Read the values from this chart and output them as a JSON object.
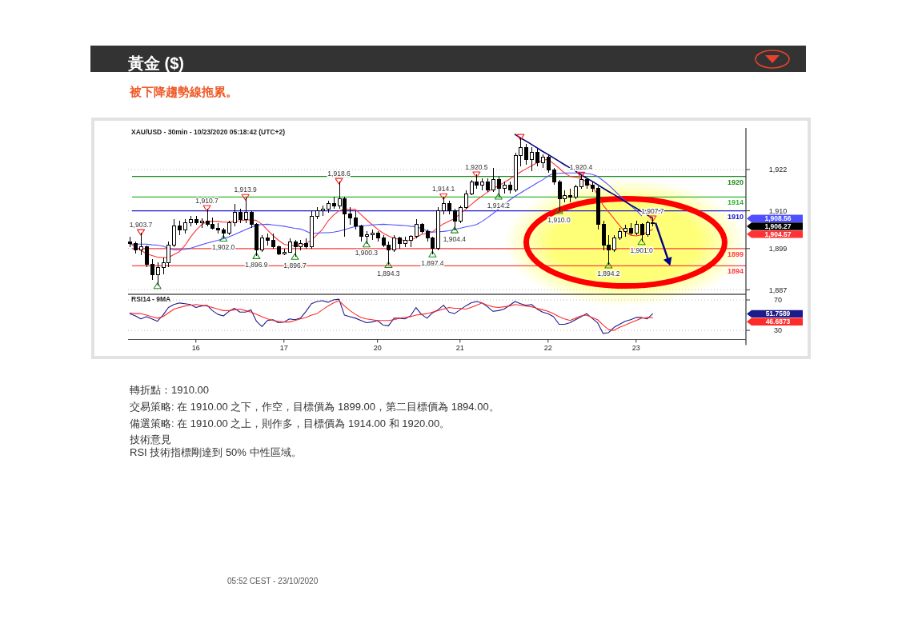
{
  "chart_data": [
    {
      "type": "candlestick",
      "title": "黃金 ($)",
      "subtitle": "被下降趨勢線拖累。",
      "categories": [
        null,
        null,
        null,
        null,
        null,
        null,
        null,
        null,
        null,
        null,
        null,
        null,
        null,
        null,
        null,
        null,
        null,
        null,
        null,
        null,
        null,
        null,
        null,
        null,
        null,
        null,
        null,
        null,
        null,
        null,
        null,
        null,
        null,
        null,
        null,
        null,
        null,
        null,
        null,
        null,
        null,
        null,
        null,
        null,
        null,
        null,
        null,
        null,
        null,
        null,
        null,
        null,
        null,
        null,
        null,
        null,
        null,
        null,
        null,
        null,
        null,
        null,
        null,
        null,
        null,
        null,
        null,
        null,
        null,
        null,
        null,
        null,
        null,
        null,
        null,
        null,
        null,
        null,
        null,
        null,
        null,
        null,
        null,
        null,
        null,
        null,
        null,
        null,
        null,
        null,
        null,
        null,
        null,
        null,
        null,
        null,
        null,
        null,
        null,
        null,
        null,
        null,
        null,
        null,
        null,
        null,
        null,
        null,
        null,
        null,
        null,
        null
      ],
      "ohlc": [
        [
          1901,
          1902.5,
          1899.5,
          1900.5
        ],
        [
          1900.5,
          1901,
          1897.5,
          1898.5
        ],
        [
          1898.5,
          1903.7,
          1897,
          1899.5
        ],
        [
          1899.5,
          1900,
          1893.5,
          1894.5
        ],
        [
          1894.5,
          1896,
          1890,
          1891.5
        ],
        [
          1891.5,
          1895,
          1888.2,
          1893.5
        ],
        [
          1893.5,
          1896.5,
          1891.5,
          1895
        ],
        [
          1895,
          1901,
          1893.5,
          1900
        ],
        [
          1900,
          1907.5,
          1899.5,
          1905.5
        ],
        [
          1905.5,
          1907,
          1903,
          1904.5
        ],
        [
          1904.5,
          1907.5,
          1903.5,
          1906.5
        ],
        [
          1906.5,
          1908.5,
          1905.5,
          1907.5
        ],
        [
          1907.5,
          1908.5,
          1906,
          1906.5
        ],
        [
          1906.5,
          1907.8,
          1905,
          1907
        ],
        [
          1907,
          1910.7,
          1905.5,
          1906
        ],
        [
          1906,
          1908,
          1904.5,
          1905
        ],
        [
          1905,
          1906.5,
          1903.5,
          1904.5
        ],
        [
          1904.5,
          1905,
          1902,
          1903.5
        ],
        [
          1903.5,
          1907,
          1903,
          1906.5
        ],
        [
          1906.5,
          1912,
          1905.5,
          1909.5
        ],
        [
          1909.5,
          1910.5,
          1906.5,
          1907.5
        ],
        [
          1907.5,
          1913.9,
          1906.5,
          1909.5
        ],
        [
          1909.5,
          1910,
          1905,
          1906
        ],
        [
          1906,
          1906.5,
          1896.9,
          1898.5
        ],
        [
          1898.5,
          1903,
          1898,
          1902
        ],
        [
          1902,
          1903.5,
          1900,
          1901.5
        ],
        [
          1901.5,
          1903.5,
          1899,
          1899.5
        ],
        [
          1899.5,
          1900,
          1897,
          1897.5
        ],
        [
          1897.5,
          1899,
          1897,
          1898
        ],
        [
          1898,
          1902,
          1898,
          1901
        ],
        [
          1901,
          1901.5,
          1896.7,
          1899.5
        ],
        [
          1899.5,
          1901.5,
          1898.5,
          1900.5
        ],
        [
          1900.5,
          1902,
          1899,
          1899.5
        ],
        [
          1899.5,
          1910,
          1899,
          1908.5
        ],
        [
          1908.5,
          1911,
          1907.5,
          1910
        ],
        [
          1910,
          1911.5,
          1908.5,
          1910.5
        ],
        [
          1910.5,
          1913,
          1909.5,
          1912
        ],
        [
          1912,
          1914,
          1910.5,
          1911.5
        ],
        [
          1911.5,
          1918.6,
          1910.5,
          1913.5
        ],
        [
          1913.5,
          1914,
          1902.5,
          1909
        ],
        [
          1909,
          1911,
          1906,
          1908
        ],
        [
          1908,
          1910,
          1904.5,
          1905.5
        ],
        [
          1905.5,
          1906,
          1901,
          1902.5
        ],
        [
          1902.5,
          1904,
          1900.3,
          1903
        ],
        [
          1903,
          1904.5,
          1901.5,
          1903.5
        ],
        [
          1903.5,
          1904,
          1901,
          1902
        ],
        [
          1902,
          1903,
          1899.5,
          1900
        ],
        [
          1900,
          1901,
          1894.3,
          1898.5
        ],
        [
          1898.5,
          1903,
          1898,
          1902
        ],
        [
          1902,
          1902.5,
          1899,
          1900.5
        ],
        [
          1900.5,
          1902.5,
          1899.5,
          1901.5
        ],
        [
          1901.5,
          1903,
          1899.5,
          1902.5
        ],
        [
          1902.5,
          1907.5,
          1902,
          1906
        ],
        [
          1906,
          1906.5,
          1903.5,
          1904
        ],
        [
          1904,
          1904.5,
          1901,
          1902
        ],
        [
          1902,
          1902.5,
          1897.4,
          1899
        ],
        [
          1899,
          1911,
          1898.5,
          1910
        ],
        [
          1910,
          1914.1,
          1909,
          1912
        ],
        [
          1912,
          1913,
          1909,
          1910
        ],
        [
          1910,
          1910.5,
          1904.4,
          1907
        ],
        [
          1907,
          1911.5,
          1906.5,
          1911
        ],
        [
          1911,
          1916,
          1910.5,
          1915
        ],
        [
          1915,
          1919,
          1914.5,
          1918.5
        ],
        [
          1918.5,
          1920.5,
          1916.5,
          1917.5
        ],
        [
          1917.5,
          1919.5,
          1916,
          1918.5
        ],
        [
          1918.5,
          1919.5,
          1915.5,
          1916
        ],
        [
          1916,
          1922.5,
          1915.5,
          1919
        ],
        [
          1919,
          1920,
          1914.2,
          1916.5
        ],
        [
          1916.5,
          1918.5,
          1915,
          1917.5
        ],
        [
          1917.5,
          1918.5,
          1915,
          1916
        ],
        [
          1916,
          1927,
          1915.5,
          1926
        ],
        [
          1926,
          1931.4,
          1923,
          1928.5
        ],
        [
          1928.5,
          1929.5,
          1923.5,
          1925
        ],
        [
          1925,
          1928.5,
          1921.5,
          1927
        ],
        [
          1927,
          1928,
          1923,
          1924
        ],
        [
          1924,
          1926.5,
          1922.5,
          1925.5
        ],
        [
          1925.5,
          1926.5,
          1921,
          1922
        ],
        [
          1922,
          1922.5,
          1917.5,
          1918.5
        ],
        [
          1918.5,
          1919,
          1910,
          1913.5
        ],
        [
          1913.5,
          1916,
          1912.5,
          1914.5
        ],
        [
          1914.5,
          1916.5,
          1912.5,
          1914
        ],
        [
          1914,
          1917.5,
          1913.5,
          1917
        ],
        [
          1917,
          1920.4,
          1916.5,
          1919
        ],
        [
          1919,
          1919.5,
          1916.5,
          1917.5
        ],
        [
          1917.5,
          1918.5,
          1915.5,
          1916.5
        ],
        [
          1916.5,
          1917,
          1904.5,
          1906
        ],
        [
          1906,
          1907,
          1898.5,
          1900
        ],
        [
          1900,
          1903,
          1894.2,
          1898.5
        ],
        [
          1898.5,
          1903,
          1898,
          1902
        ],
        [
          1902,
          1905,
          1901.5,
          1904
        ],
        [
          1904,
          1906,
          1902.5,
          1905
        ],
        [
          1905,
          1906.5,
          1903,
          1903.5
        ],
        [
          1903.5,
          1907,
          1903,
          1906
        ],
        [
          1906,
          1906.5,
          1901,
          1903
        ],
        [
          1903,
          1907.2,
          1902.5,
          1906.5
        ],
        [
          1906.5,
          1907.7,
          1905.5,
          1906.27
        ],
        null,
        null,
        null,
        null,
        null,
        null,
        null,
        null,
        null,
        null,
        null,
        null,
        null,
        null,
        null,
        null
      ],
      "ylim": [
        1885.7,
        1934.1
      ],
      "yticks": [
        {
          "value": 1922,
          "label": "1,922"
        },
        {
          "value": 1910,
          "label": "1,910"
        },
        {
          "value": 1899,
          "label": "1,899"
        },
        {
          "value": 1887,
          "label": "1,887"
        }
      ],
      "grid": "y",
      "series": [
        {
          "type": "line",
          "color": "#ff3333",
          "values": [
            1900.5,
            1899.5,
            1898.5,
            1897.5,
            1897,
            1896.5,
            1896.4,
            1896.4,
            1897.3,
            1898.1,
            1899.9,
            1902.3,
            1904.3,
            1905.9,
            1906.9,
            1907,
            1906.9,
            1906.7,
            1906.7,
            1907,
            1907.1,
            1907.3,
            1907.4,
            1907.2,
            1906.1,
            1904.4,
            1902.8,
            1901.4,
            1900.3,
            1899.9,
            1899.9,
            1899.9,
            1900.5,
            1901.5,
            1903,
            1904.6,
            1907,
            1908.7,
            1910,
            1910.4,
            1910.4,
            1910.4,
            1908.9,
            1907.4,
            1906,
            1904.7,
            1903.5,
            1902.7,
            1902,
            1901.7,
            1901.3,
            1901.4,
            1902.2,
            1903.1,
            1903.5,
            1903.8,
            1905.2,
            1906.2,
            1907,
            1907.7,
            1909.1,
            1910.4,
            1911.8,
            1913.1,
            1914.3,
            1915.4,
            1916.5,
            1917.3,
            1918.2,
            1919.2,
            1920.3,
            1921.3,
            1922.2,
            1923.1,
            1924,
            1924.7,
            1925,
            1923.7,
            1922.4,
            1921,
            1920,
            1919.8,
            1919.4,
            1918.4,
            1917.1,
            1914.7,
            1911.6,
            1909.7,
            1907.7,
            1905.7,
            1903.9,
            1902.9,
            1902.7,
            1903,
            1903.8,
            1904.57,
            null,
            null,
            null,
            null,
            null,
            null,
            null,
            null,
            null,
            null,
            null,
            null,
            null,
            null,
            null,
            null
          ]
        },
        {
          "type": "line",
          "color": "#5050ff",
          "values": [
            1900.3,
            1900.3,
            1900.3,
            1900.3,
            1900.1,
            1900,
            1899.7,
            1899.1,
            1898.6,
            1898.6,
            1898.8,
            1899.1,
            1899.6,
            1900.1,
            1900.6,
            1901,
            1901.4,
            1901.9,
            1902.4,
            1903.1,
            1903.8,
            1904.5,
            1905.2,
            1905.8,
            1906,
            1906.1,
            1905.9,
            1905.7,
            1905.5,
            1905.2,
            1904.9,
            1904.7,
            1904.1,
            1903.4,
            1903.5,
            1903.6,
            1903.6,
            1903.8,
            1904.1,
            1904.5,
            1905,
            1905.4,
            1905.6,
            1905.7,
            1905.9,
            1906,
            1906.1,
            1906,
            1905.9,
            1905.8,
            1905.7,
            1905.5,
            1905.4,
            1904.8,
            1904.2,
            1903.8,
            1903.9,
            1904,
            1904.2,
            1904.6,
            1904.9,
            1905.3,
            1905.6,
            1906,
            1906.9,
            1908,
            1909.2,
            1910.5,
            1911.8,
            1913.1,
            1914.2,
            1915.2,
            1916.2,
            1917.1,
            1918.1,
            1919,
            1920.1,
            1920.9,
            1920.9,
            1921,
            1921,
            1921,
            1921,
            1920.9,
            1920.6,
            1920,
            1918.8,
            1917.5,
            1916,
            1914.4,
            1912.9,
            1911.5,
            1910.2,
            1908.56,
            null,
            null,
            null,
            null,
            null,
            null,
            null,
            null,
            null,
            null,
            null,
            null,
            null,
            null,
            null,
            null,
            null,
            null
          ]
        },
        {
          "type": "line",
          "color": "#000080",
          "values": [
            null,
            null,
            null,
            null,
            null,
            null,
            null,
            null,
            null,
            null,
            null,
            null,
            null,
            null,
            null,
            null,
            null,
            null,
            null,
            null,
            null,
            null,
            null,
            null,
            null,
            null,
            null,
            null,
            null,
            null,
            null,
            null,
            null,
            null,
            null,
            null,
            null,
            null,
            null,
            null,
            null,
            null,
            null,
            null,
            null,
            null,
            null,
            null,
            null,
            null,
            null,
            null,
            null,
            null,
            null,
            null,
            null,
            null,
            null,
            null,
            null,
            null,
            null,
            null,
            null,
            null,
            null,
            null,
            null,
            null,
            1932.2,
            1931.2,
            1930.3,
            1929.3,
            1928.3,
            1927.3,
            1926.4,
            1925.4,
            1924.4,
            1923.4,
            1922.5,
            1921.5,
            1920.5,
            1919.5,
            1918.6,
            1917.6,
            1916.6,
            1915.6,
            1914.7,
            1913.7,
            1912.7,
            1911.7,
            1910.8,
            1909.8,
            1908.8,
            1907.9,
            null,
            null,
            null,
            null,
            null,
            null,
            null,
            null,
            null,
            null,
            null,
            null,
            null,
            null,
            null,
            null
          ]
        },
        {
          "type": "scatter",
          "marker": "triangle",
          "color": "#ff2020",
          "values": [
            null,
            null,
            1903.7,
            null,
            null,
            null,
            null,
            null,
            null,
            null,
            null,
            null,
            null,
            null,
            1910.7,
            null,
            null,
            null,
            null,
            null,
            null,
            1913.9,
            null,
            null,
            null,
            null,
            null,
            null,
            null,
            null,
            null,
            null,
            null,
            null,
            null,
            null,
            null,
            null,
            1918.6,
            null,
            null,
            null,
            null,
            null,
            null,
            null,
            null,
            null,
            null,
            null,
            null,
            null,
            null,
            null,
            null,
            null,
            null,
            1914.1,
            null,
            null,
            null,
            null,
            null,
            1920.5,
            null,
            null,
            null,
            null,
            null,
            null,
            null,
            1931.4,
            null,
            null,
            null,
            null,
            null,
            null,
            null,
            null,
            null,
            null,
            1920.4,
            null,
            null,
            null,
            null,
            null,
            null,
            null,
            null,
            null,
            null,
            null,
            null,
            1907.7,
            null,
            null,
            null,
            null,
            null,
            null,
            null,
            null,
            null,
            null,
            null,
            null,
            null,
            null,
            null,
            null
          ],
          "value_labels": [
            null,
            null,
            "1,903.7",
            null,
            null,
            null,
            null,
            null,
            null,
            null,
            null,
            null,
            null,
            null,
            "1,910.7",
            null,
            null,
            null,
            null,
            null,
            null,
            "1,913.9",
            null,
            null,
            null,
            null,
            null,
            null,
            null,
            null,
            null,
            null,
            null,
            null,
            null,
            null,
            null,
            null,
            "1,918.6",
            null,
            null,
            null,
            null,
            null,
            null,
            null,
            null,
            null,
            null,
            null,
            null,
            null,
            null,
            null,
            null,
            null,
            null,
            "1,914.1",
            null,
            null,
            null,
            null,
            null,
            "1,920.5",
            null,
            null,
            null,
            null,
            null,
            null,
            null,
            null,
            null,
            null,
            null,
            null,
            null,
            null,
            null,
            null,
            null,
            null,
            "1,920.4",
            null,
            null,
            null,
            null,
            null,
            null,
            null,
            null,
            null,
            null,
            null,
            null,
            "1,907.7",
            null,
            null,
            null,
            null,
            null,
            null,
            null,
            null,
            null,
            null,
            null,
            null,
            null,
            null,
            null,
            null
          ]
        },
        {
          "type": "scatter",
          "marker": "triangle",
          "color": "#1f8f1f",
          "values": [
            null,
            null,
            null,
            null,
            null,
            1888.2,
            null,
            null,
            null,
            null,
            null,
            null,
            null,
            null,
            null,
            null,
            null,
            1902.0,
            null,
            null,
            null,
            null,
            null,
            1896.9,
            null,
            null,
            null,
            null,
            null,
            null,
            1896.7,
            null,
            null,
            null,
            null,
            null,
            null,
            null,
            null,
            null,
            null,
            null,
            null,
            1900.3,
            null,
            null,
            null,
            1894.3,
            null,
            null,
            null,
            null,
            null,
            null,
            null,
            1897.4,
            null,
            null,
            null,
            1904.4,
            null,
            null,
            null,
            null,
            null,
            null,
            null,
            1914.2,
            null,
            null,
            null,
            null,
            null,
            null,
            null,
            null,
            null,
            null,
            1910.0,
            null,
            null,
            null,
            null,
            null,
            null,
            null,
            null,
            1894.2,
            null,
            null,
            null,
            null,
            null,
            1901.0,
            null,
            null,
            null,
            null,
            null,
            null,
            null,
            null,
            null,
            null,
            null,
            null,
            null,
            null,
            null,
            null,
            null,
            null
          ],
          "value_labels": [
            null,
            null,
            null,
            null,
            null,
            null,
            null,
            null,
            null,
            null,
            null,
            null,
            null,
            null,
            null,
            null,
            null,
            "1,902.0",
            null,
            null,
            null,
            null,
            null,
            "1,896.9",
            null,
            null,
            null,
            null,
            null,
            null,
            "1,896.7",
            null,
            null,
            null,
            null,
            null,
            null,
            null,
            null,
            null,
            null,
            null,
            null,
            "1,900.3",
            null,
            null,
            null,
            "1,894.3",
            null,
            null,
            null,
            null,
            null,
            null,
            null,
            "1,897.4",
            null,
            null,
            null,
            "1,904.4",
            null,
            null,
            null,
            null,
            null,
            null,
            null,
            "1,914.2",
            null,
            null,
            null,
            null,
            null,
            null,
            null,
            null,
            null,
            null,
            "1,910.0",
            null,
            null,
            null,
            null,
            null,
            null,
            null,
            null,
            "1,894.2",
            null,
            null,
            null,
            null,
            null,
            "1,901.0",
            null,
            null,
            null,
            null,
            null,
            null,
            null,
            null,
            null,
            null,
            null,
            null,
            null,
            null,
            null,
            null,
            null,
            null
          ]
        }
      ],
      "ref_lines": [
        {
          "axis": "y",
          "value": 1920,
          "label": "1920",
          "color": "#1e8c1e"
        },
        {
          "axis": "y",
          "value": 1914,
          "label": "1914",
          "color": "#33b533"
        },
        {
          "axis": "y",
          "value": 1910,
          "label": "1910",
          "color": "#1a1acc"
        },
        {
          "axis": "y",
          "value": 1899,
          "label": "1899",
          "color": "#ff4040"
        },
        {
          "axis": "y",
          "value": 1894,
          "label": "1894",
          "color": "#ff4040"
        }
      ],
      "annotations": [
        "XAU/USD - 30min - 10/23/2020 05:18:42 (UTC+2)",
        "1,908.56",
        "1,906.27",
        "1,904.57"
      ]
    },
    {
      "type": "line",
      "title": "RSI14 - 9MA",
      "categories": [
        null,
        null,
        null,
        null,
        null,
        null,
        null,
        null,
        null,
        null,
        null,
        null,
        "16",
        null,
        null,
        null,
        null,
        null,
        null,
        null,
        null,
        null,
        null,
        null,
        null,
        null,
        null,
        null,
        "17",
        null,
        null,
        null,
        null,
        null,
        null,
        null,
        null,
        null,
        null,
        null,
        null,
        null,
        null,
        null,
        null,
        "20",
        null,
        null,
        null,
        null,
        null,
        null,
        null,
        null,
        null,
        null,
        null,
        null,
        null,
        null,
        "21",
        null,
        null,
        null,
        null,
        null,
        null,
        null,
        null,
        null,
        null,
        null,
        null,
        null,
        null,
        null,
        "22",
        null,
        null,
        null,
        null,
        null,
        null,
        null,
        null,
        null,
        null,
        null,
        null,
        null,
        null,
        null,
        "23",
        null,
        null,
        null,
        null,
        null,
        null,
        null,
        null,
        null,
        null,
        null,
        null,
        null,
        null,
        null,
        null,
        null,
        null,
        null
      ],
      "ylim": [
        18,
        77.4
      ],
      "yticks": [
        70,
        30
      ],
      "grid": "y",
      "series": [
        {
          "color": "#1c1c8c",
          "values": [
            52,
            49,
            45,
            48,
            45,
            42,
            50,
            60,
            64,
            66,
            65,
            64,
            60,
            62,
            63,
            56,
            51,
            49,
            55,
            59,
            54,
            54,
            57,
            42,
            35,
            43,
            44,
            40,
            41,
            45,
            44,
            46,
            55,
            65,
            68,
            69,
            67,
            70,
            71,
            50,
            48,
            46,
            43,
            40,
            41,
            43,
            37,
            36,
            46,
            46,
            45,
            49,
            60,
            51,
            46,
            53,
            57,
            63,
            54,
            52,
            57,
            62,
            66,
            68,
            66,
            61,
            55,
            56,
            58,
            63,
            68,
            65,
            63,
            64,
            58,
            54,
            52,
            48,
            38,
            38,
            40,
            44,
            48,
            52,
            46,
            40,
            26,
            27,
            34,
            38,
            42,
            44,
            47,
            47,
            45,
            51.7589,
            null,
            null,
            null,
            null,
            null,
            null,
            null,
            null,
            null,
            null,
            null,
            null,
            null,
            null,
            null,
            null
          ]
        },
        {
          "color": "#ff2a2a",
          "values": [
            53,
            52,
            52,
            50,
            48,
            46,
            48,
            53,
            58,
            60,
            62,
            63,
            64,
            63,
            62,
            60,
            58,
            56,
            56,
            57,
            58,
            56,
            54,
            51,
            48,
            45,
            43,
            42,
            41,
            41,
            43,
            45,
            47,
            50,
            52,
            57,
            62,
            66,
            69,
            62,
            56,
            51,
            47,
            45,
            44,
            43,
            43,
            43,
            44,
            46,
            47,
            48,
            50,
            51,
            52,
            54,
            56,
            58,
            60,
            59,
            59,
            58,
            60,
            63,
            66,
            63,
            61,
            60,
            61,
            62,
            64,
            63,
            62,
            61,
            59,
            57,
            55,
            52,
            48,
            45,
            43,
            46,
            49,
            50,
            47,
            44,
            37,
            31,
            30,
            34,
            37,
            40,
            43,
            46,
            47,
            46.6873,
            null,
            null,
            null,
            null,
            null,
            null,
            null,
            null,
            null,
            null,
            null,
            null,
            null,
            null,
            null,
            null
          ]
        }
      ],
      "annotations": [
        "51.7589",
        "46.6873"
      ]
    },
    {
      "type": "other",
      "annotations": [
        "轉折點：1910.00",
        "交易策略: 在 1910.00 之下，作空，目標價為 1899.00，第二目標價為 1894.00。",
        "備選策略: 在 1910.00 之上，則作多，目標價為 1914.00 和 1920.00。",
        "技術意見",
        "RSI 技術指標剛達到 50% 中性區域。",
        "05:52 CEST - 23/10/2020"
      ]
    }
  ]
}
